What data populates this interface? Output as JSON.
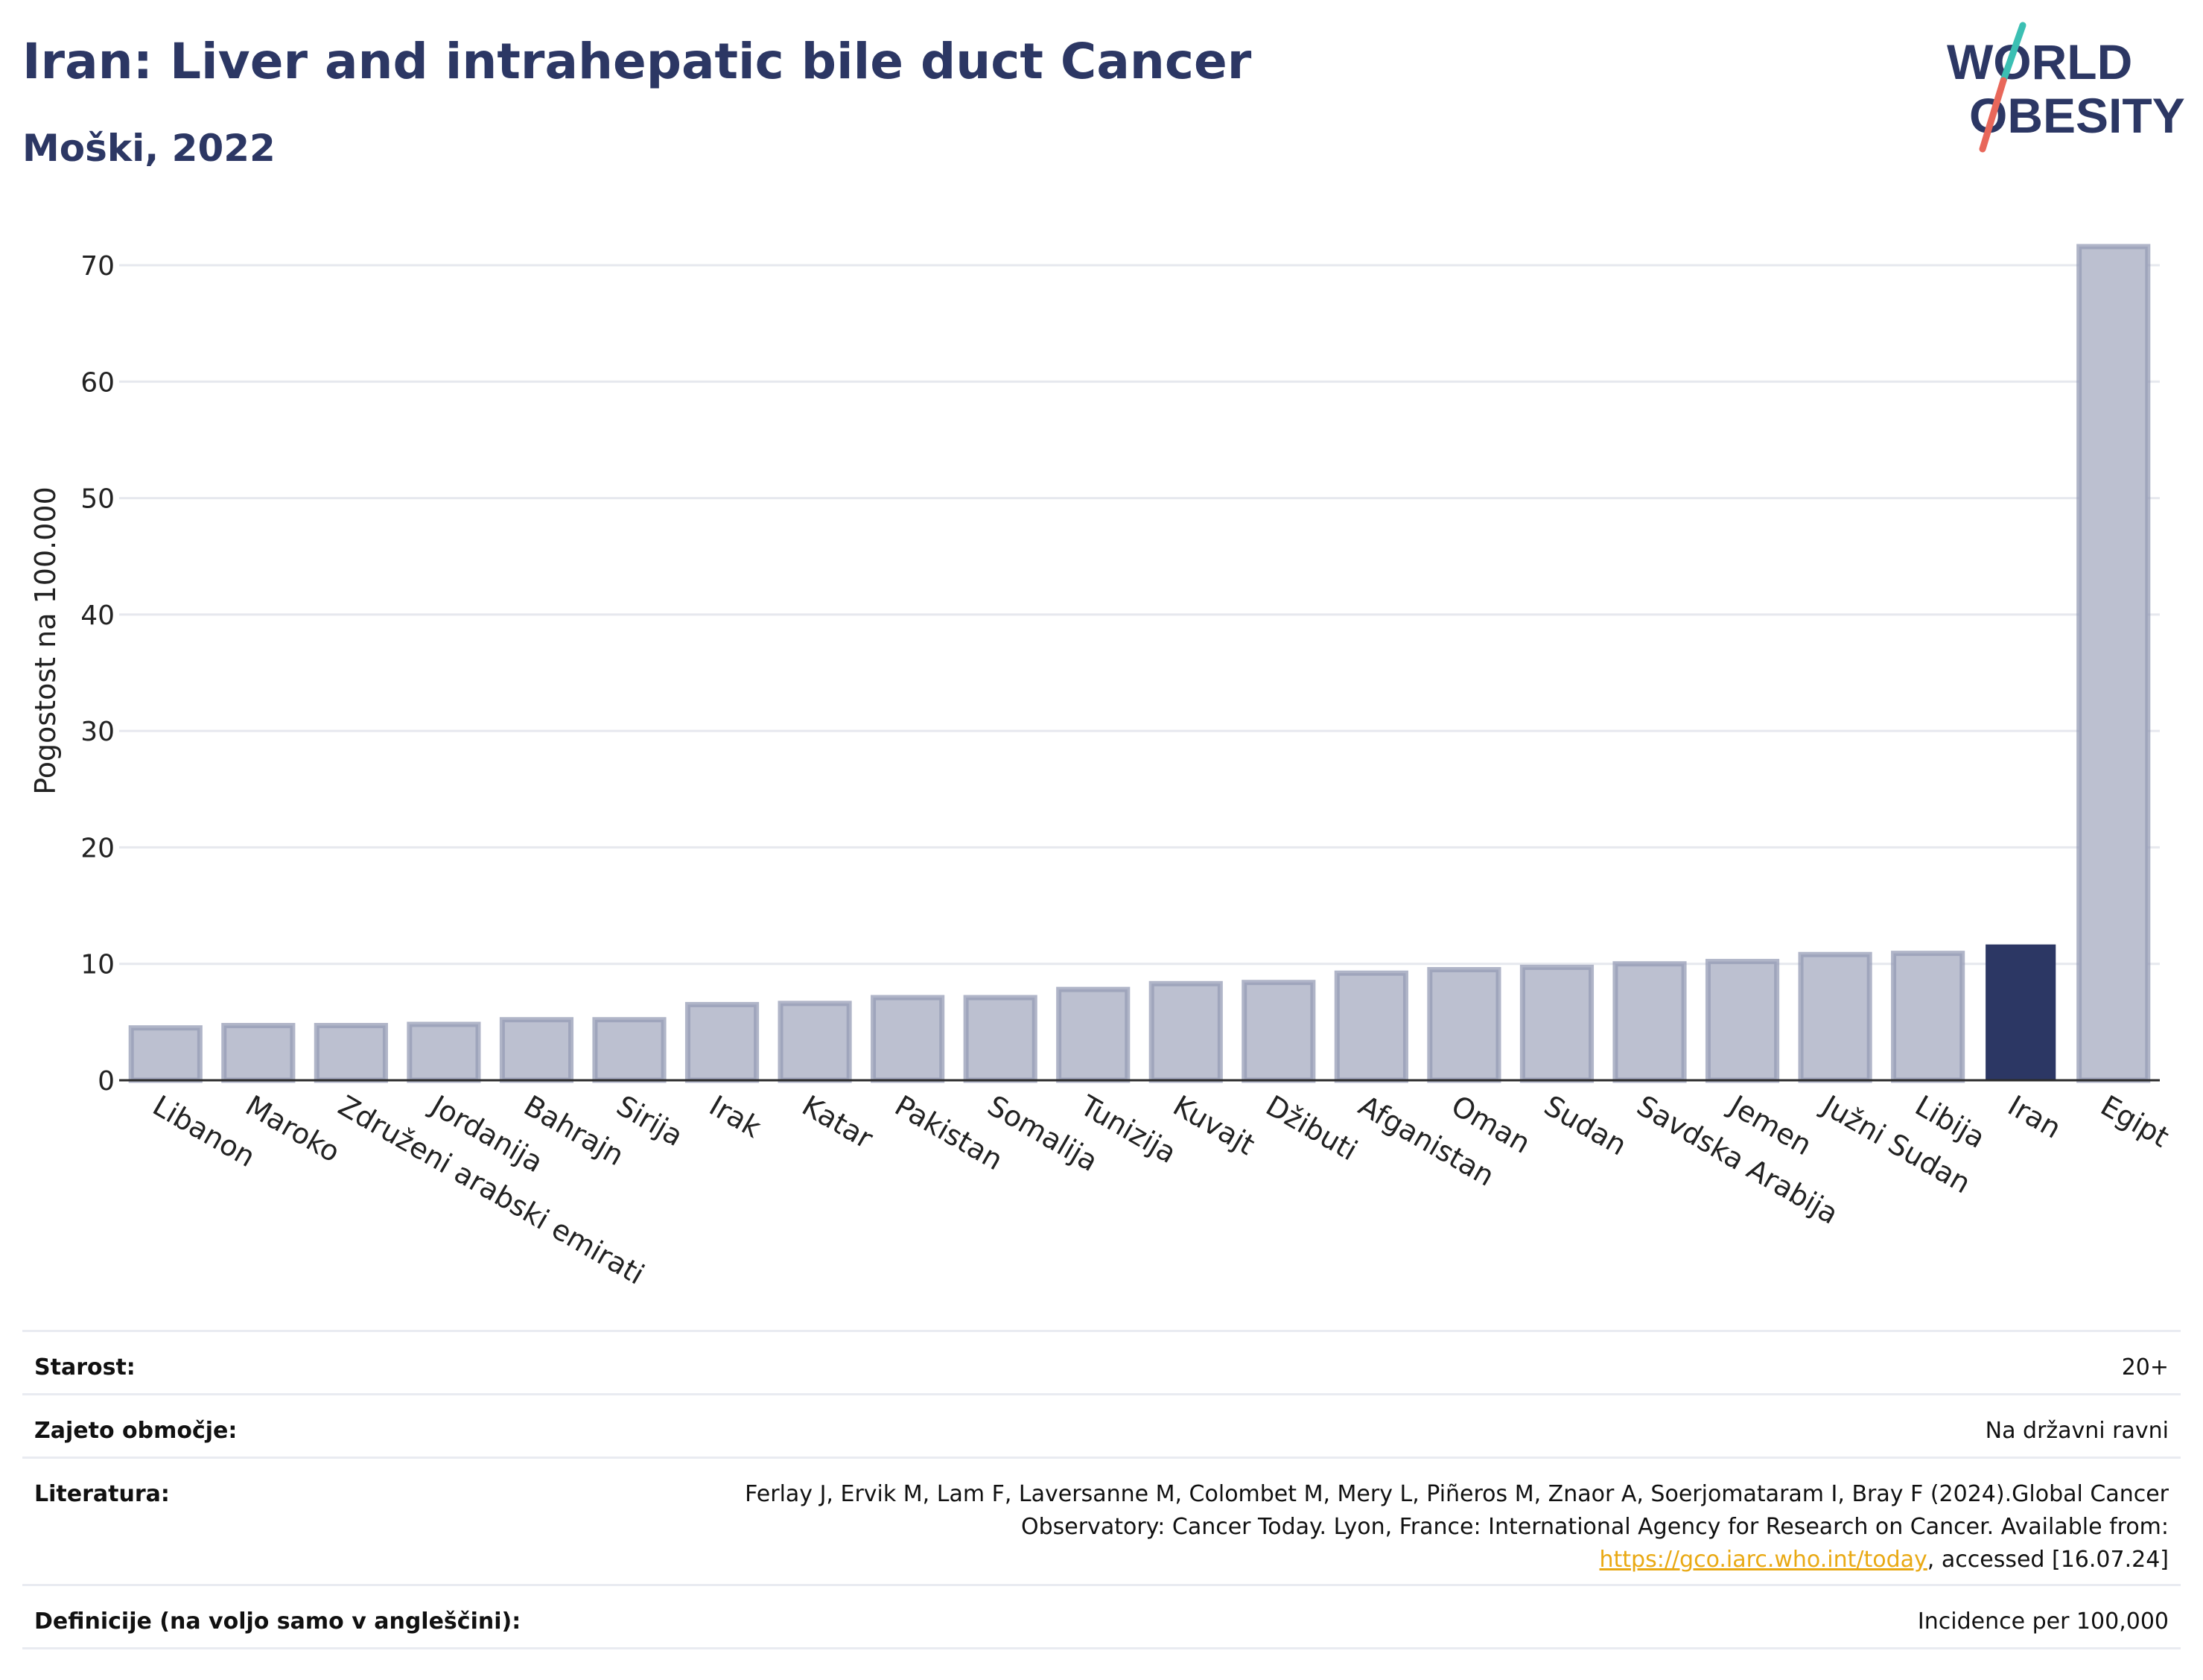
{
  "header": {
    "title": "Iran: Liver and intrahepatic bile duct Cancer",
    "subtitle": "Moški, 2022"
  },
  "logo": {
    "line1": "WORLD",
    "line2": "OBESITY",
    "colors": {
      "text": "#2c3764",
      "slash_top": "#3bbfb3",
      "slash_bottom": "#e8675a"
    }
  },
  "chart_data": {
    "type": "bar",
    "title": "",
    "xlabel": "",
    "ylabel": "Pogostost na 100.000",
    "ylim": [
      0,
      74
    ],
    "yticks": [
      0,
      10,
      20,
      30,
      40,
      50,
      60,
      70
    ],
    "grid": true,
    "categories": [
      "Libanon",
      "Maroko",
      "Združeni arabski emirati",
      "Jordanija",
      "Bahrajn",
      "Sirija",
      "Irak",
      "Katar",
      "Pakistan",
      "Somalija",
      "Tunizija",
      "Kuvajt",
      "Džibuti",
      "Afganistan",
      "Oman",
      "Sudan",
      "Savdska Arabija",
      "Jemen",
      "Južni Sudan",
      "Libija",
      "Iran",
      "Egipt"
    ],
    "values": [
      4.5,
      4.7,
      4.7,
      4.8,
      5.2,
      5.2,
      6.5,
      6.6,
      7.1,
      7.1,
      7.8,
      8.3,
      8.4,
      9.2,
      9.5,
      9.7,
      10.0,
      10.2,
      10.8,
      10.9,
      11.6,
      71.6
    ],
    "highlight": "Iran",
    "colors": {
      "bar": "#bcc0d0",
      "bar_edge": "#959cb5",
      "highlight": "#2c3764"
    }
  },
  "metadata": {
    "age_label": "Starost:",
    "age_value": "20+",
    "area_label": "Zajeto območje:",
    "area_value": "Na državni ravni",
    "literature_label": "Literatura:",
    "literature_text": "Ferlay J, Ervik M, Lam F, Laversanne M, Colombet M, Mery L, Piñeros M, Znaor A, Soerjomataram I, Bray F (2024).Global Cancer Observatory: Cancer Today. Lyon, France: International Agency for Research on Cancer. Available from: ",
    "literature_link": "https://gco.iarc.who.int/today",
    "literature_suffix": ", accessed [16.07.24]",
    "definitions_label": "Definicije (na voljo samo v angleščini):",
    "definitions_value": "Incidence per 100,000"
  }
}
